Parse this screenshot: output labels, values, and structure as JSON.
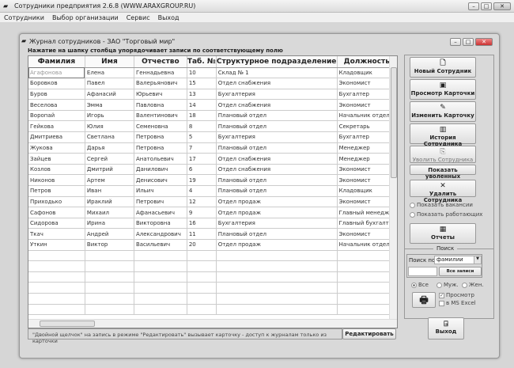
{
  "app": {
    "title": "Сотрудники предприятия 2.6.8  (WWW.ARAXGROUP.RU)"
  },
  "menu": [
    "Сотрудники",
    "Выбор организации",
    "Сервис",
    "Выход"
  ],
  "journal": {
    "title": "Журнал сотрудников -  ЗАО \"Торговый мир\"",
    "hint": "Нажатие на шапку столбца упорядочивает записи  по соответствующему полю"
  },
  "table": {
    "columns": [
      "Фамилия",
      "Имя",
      "Отчество",
      "Таб. №",
      "Структурное подразделение",
      "Должность"
    ],
    "rows": [
      [
        "Агафонова",
        "Елена",
        "Геннадьевна",
        "10",
        "Склад № 1",
        "Кладовщик"
      ],
      [
        "Боровков",
        "Павел",
        "Валерьянович",
        "15",
        "Отдел снабжения",
        "Экономист"
      ],
      [
        "Буров",
        "Афанасий",
        "Юрьевич",
        "13",
        "Бухгалтерия",
        "Бухгалтер"
      ],
      [
        "Веселова",
        "Эмма",
        "Павловна",
        "14",
        "Отдел снабжения",
        "Экономист"
      ],
      [
        "Воропай",
        "Игорь",
        "Валентинович",
        "18",
        "Плановый отдел",
        "Начальник отдела"
      ],
      [
        "Гейкова",
        "Юлия",
        "Семеновна",
        "8",
        "Плановый отдел",
        "Секретарь"
      ],
      [
        "Дмитриева",
        "Светлана",
        "Петровна",
        "5",
        "Бухгалтерия",
        "Бухгалтер"
      ],
      [
        "Жукова",
        "Дарья",
        "Петровна",
        "7",
        "Плановый отдел",
        "Менеджер"
      ],
      [
        "Зайцев",
        "Сергей",
        "Анатольевич",
        "17",
        "Отдел снабжения",
        "Менеджер"
      ],
      [
        "Козлов",
        "Дмитрий",
        "Данилович",
        "6",
        "Отдел снабжения",
        "Экономист"
      ],
      [
        "Никонов",
        "Артем",
        "Денисович",
        "19",
        "Плановый отдел",
        "Экономист"
      ],
      [
        "Петров",
        "Иван",
        "Ильич",
        "4",
        "Плановый отдел",
        "Кладовщик"
      ],
      [
        "Приходько",
        "Ираклий",
        "Петрович",
        "12",
        "Отдел продаж",
        "Экономист"
      ],
      [
        "Сафонов",
        "Михаил",
        "Афанасьевич",
        "9",
        "Отдел продаж",
        "Главный менеджер"
      ],
      [
        "Сидорова",
        "Ирина",
        "Викторовна",
        "16",
        "Бухгалтерия",
        "Главный бухгалтер"
      ],
      [
        "Ткач",
        "Андрей",
        "Александрович",
        "11",
        "Плановый отдел",
        "Экономист"
      ],
      [
        "Уткин",
        "Виктор",
        "Васильевич",
        "20",
        "Отдел продаж",
        "Начальник отдела"
      ]
    ]
  },
  "status": "\"Двойной щелчок\" на запись в режиме \"Редактировать\" вызывает карточку  -  доступ к журналам только из карточки",
  "edit_button": "Редактировать",
  "panel": {
    "new": "Новый Сотрудник",
    "view": "Просмотр Карточки",
    "change": "Изменить Карточку",
    "history": "История Сотрудника",
    "fire": "Уволить Сотрудника",
    "show_fired": "Показать уволенных",
    "delete": "Удалить Сотрудника",
    "show_vacancies": "Показать вакансии",
    "show_working": "Показать работающих",
    "reports": "Отчеты",
    "search": {
      "legend": "Поиск",
      "by_label": "Поиск по",
      "by_value": "фамилии",
      "all_records": "Все записи",
      "value": ""
    },
    "gender": [
      "Все",
      "Муж.",
      "Жен."
    ],
    "gender_selected": "Все",
    "preview": "Просмотр",
    "excel": "в MS Excel",
    "preview_checked": true,
    "excel_checked": false,
    "exit": "Выход"
  }
}
